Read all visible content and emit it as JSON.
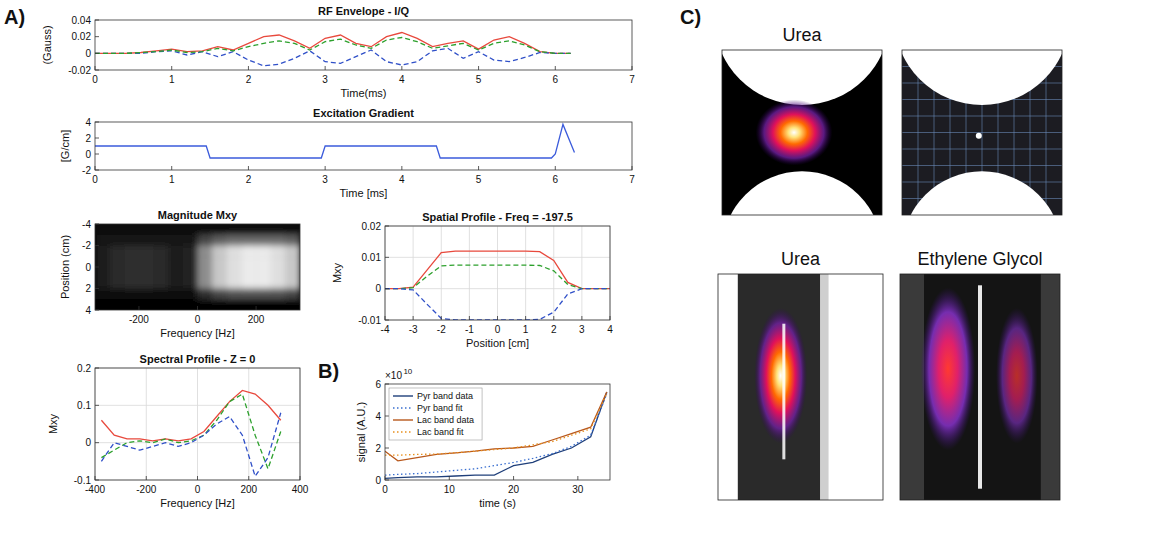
{
  "panel_labels": [
    "A)",
    "B)",
    "C)"
  ],
  "chart_data": [
    {
      "type": "line",
      "title": "RF Envelope - I/Q",
      "x_label": "Time(ms)",
      "y_label": "(Gauss)",
      "xlim": [
        0,
        7
      ],
      "xticks": [
        0,
        1,
        2,
        3,
        4,
        5,
        6,
        7
      ],
      "ylim": [
        -0.02,
        0.04
      ],
      "yticks": [
        -0.02,
        0,
        0.02,
        0.04
      ],
      "grid": false,
      "x": [
        0,
        0.2,
        0.4,
        0.6,
        0.8,
        1,
        1.2,
        1.4,
        1.6,
        1.8,
        2,
        2.2,
        2.4,
        2.6,
        2.8,
        3,
        3.2,
        3.4,
        3.6,
        3.8,
        4,
        4.2,
        4.4,
        4.6,
        4.8,
        5,
        5.2,
        5.4,
        5.6,
        5.8,
        6,
        6.2
      ],
      "series": [
        {
          "color": "#e8493d",
          "line_style": "solid",
          "values": [
            0,
            0,
            0,
            0.001,
            0.003,
            0.005,
            0.002,
            0.003,
            0.008,
            0.004,
            0.012,
            0.02,
            0.022,
            0.015,
            0.006,
            0.018,
            0.022,
            0.012,
            0.008,
            0.02,
            0.025,
            0.018,
            0.008,
            0.012,
            0.015,
            0.005,
            0.016,
            0.02,
            0.012,
            0.002,
            0,
            0
          ]
        },
        {
          "color": "#3050c8",
          "line_style": "dashed",
          "values": [
            0,
            0,
            0,
            0,
            0.002,
            0.003,
            -0.002,
            0.002,
            -0.004,
            0.002,
            -0.008,
            -0.015,
            -0.013,
            -0.006,
            0.003,
            -0.01,
            -0.012,
            -0.004,
            0.004,
            -0.01,
            -0.014,
            -0.01,
            0.003,
            0.006,
            -0.006,
            0.002,
            -0.008,
            -0.01,
            -0.005,
            0.001,
            0,
            0
          ]
        },
        {
          "color": "#2ca02c",
          "line_style": "dashed",
          "values": [
            0,
            0,
            0,
            0.001,
            0.002,
            0.004,
            0.001,
            0.002,
            0.006,
            0.003,
            0.008,
            0.012,
            0.015,
            0.012,
            0.004,
            0.014,
            0.017,
            0.01,
            0.006,
            0.016,
            0.019,
            0.014,
            0.006,
            0.009,
            0.012,
            0.004,
            0.012,
            0.015,
            0.01,
            0.002,
            0,
            0
          ]
        }
      ]
    },
    {
      "type": "line",
      "title": "Excitation Gradient",
      "x_label": "Time [ms]",
      "y_label": "[G/cm]",
      "xlim": [
        0,
        7
      ],
      "xticks": [
        0,
        1,
        2,
        3,
        4,
        5,
        6,
        7
      ],
      "ylim": [
        -2,
        4
      ],
      "yticks": [
        -2,
        0,
        2,
        4
      ],
      "grid": false,
      "x": [
        0,
        1.45,
        1.5,
        2.95,
        3,
        4.45,
        4.5,
        5.95,
        6,
        6.1,
        6.25
      ],
      "series": [
        {
          "color": "#3b5bdb",
          "line_style": "solid",
          "values": [
            1,
            1,
            -0.5,
            -0.5,
            1,
            1,
            -0.5,
            -0.5,
            0,
            3.7,
            0.2
          ]
        }
      ]
    },
    {
      "type": "heatmap",
      "title": "Magnitude Mxy",
      "x_label": "Frequency [Hz]",
      "y_label": "Position (cm)",
      "xlim": [
        -350,
        350
      ],
      "xticks": [
        -200,
        0,
        200
      ],
      "ylim": [
        4,
        -4
      ],
      "yticks": [
        -4,
        -2,
        0,
        2,
        4
      ],
      "x": [
        -325,
        -275,
        -225,
        -175,
        -125,
        -75,
        -25,
        25,
        75,
        125,
        175,
        225,
        275,
        325
      ],
      "y": [
        -3.5,
        -2.5,
        -1.5,
        -0.5,
        0.5,
        1.5,
        2.5,
        3.5
      ],
      "cells": [
        [
          0.03,
          0.03,
          0.03,
          0.03,
          0.03,
          0.03,
          0.03,
          0.03,
          0.03,
          0.03,
          0.03,
          0.03,
          0.03,
          0.03
        ],
        [
          0.08,
          0.08,
          0.08,
          0.08,
          0.08,
          0.08,
          0.08,
          0.3,
          0.4,
          0.45,
          0.45,
          0.45,
          0.45,
          0.4
        ],
        [
          0.12,
          0.18,
          0.2,
          0.2,
          0.18,
          0.12,
          0.15,
          0.6,
          0.85,
          0.95,
          1,
          1,
          0.95,
          0.85
        ],
        [
          0.12,
          0.18,
          0.2,
          0.2,
          0.18,
          0.12,
          0.15,
          0.6,
          0.85,
          0.95,
          1,
          1,
          0.95,
          0.85
        ],
        [
          0.12,
          0.18,
          0.2,
          0.2,
          0.18,
          0.12,
          0.15,
          0.6,
          0.85,
          0.95,
          1,
          1,
          0.95,
          0.85
        ],
        [
          0.12,
          0.18,
          0.2,
          0.2,
          0.18,
          0.12,
          0.15,
          0.6,
          0.85,
          0.95,
          1,
          1,
          0.95,
          0.85
        ],
        [
          0.06,
          0.06,
          0.06,
          0.06,
          0.06,
          0.06,
          0.06,
          0.2,
          0.3,
          0.35,
          0.35,
          0.35,
          0.35,
          0.3
        ],
        [
          0.02,
          0.02,
          0.02,
          0.02,
          0.02,
          0.02,
          0.02,
          0.02,
          0.02,
          0.02,
          0.02,
          0.02,
          0.02,
          0.02
        ]
      ]
    },
    {
      "type": "line",
      "title": "Spatial Profile - Freq = -197.5",
      "x_label": "Position [cm]",
      "y_label": "Mxy",
      "xlim": [
        -4,
        4
      ],
      "xticks": [
        -4,
        -3,
        -2,
        -1,
        0,
        1,
        2,
        3,
        4
      ],
      "ylim": [
        -0.01,
        0.02
      ],
      "yticks": [
        -0.01,
        0,
        0.01,
        0.02
      ],
      "grid": true,
      "x": [
        -4,
        -3.5,
        -3,
        -2.5,
        -2,
        -1.5,
        -1,
        -0.5,
        0,
        0.5,
        1,
        1.5,
        2,
        2.5,
        3,
        3.5,
        4
      ],
      "series": [
        {
          "color": "#e8493d",
          "line_style": "solid",
          "values": [
            0,
            0,
            0.0005,
            0.006,
            0.0115,
            0.012,
            0.012,
            0.012,
            0.012,
            0.012,
            0.012,
            0.0118,
            0.009,
            0.002,
            0,
            0,
            0
          ]
        },
        {
          "color": "#2ca02c",
          "line_style": "dashed",
          "values": [
            0,
            0,
            0.0003,
            0.004,
            0.0073,
            0.0075,
            0.0075,
            0.0075,
            0.0075,
            0.0075,
            0.0075,
            0.0074,
            0.0057,
            0.0013,
            0,
            0,
            0
          ]
        },
        {
          "color": "#3050c8",
          "line_style": "dashed",
          "values": [
            0,
            0,
            -0.0004,
            -0.005,
            -0.0095,
            -0.01,
            -0.01,
            -0.01,
            -0.01,
            -0.01,
            -0.01,
            -0.0098,
            -0.0075,
            -0.0017,
            0,
            0,
            0
          ]
        }
      ]
    },
    {
      "type": "line",
      "title": "Spectral Profile - Z = 0",
      "x_label": "Frequency [Hz]",
      "y_label": "Mxy",
      "xlim": [
        -400,
        400
      ],
      "xticks": [
        -400,
        -200,
        0,
        200,
        400
      ],
      "ylim": [
        -0.1,
        0.2
      ],
      "yticks": [
        -0.1,
        0,
        0.1,
        0.2
      ],
      "grid": true,
      "x": [
        -375,
        -325,
        -275,
        -225,
        -175,
        -125,
        -75,
        -25,
        25,
        75,
        125,
        175,
        225,
        275,
        325
      ],
      "series": [
        {
          "color": "#e8493d",
          "line_style": "solid",
          "values": [
            0.06,
            0.02,
            0.01,
            0.01,
            0.005,
            0.01,
            0.005,
            0.01,
            0.03,
            0.07,
            0.11,
            0.14,
            0.13,
            0.1,
            0.06
          ]
        },
        {
          "color": "#2ca02c",
          "line_style": "dashed",
          "values": [
            -0.04,
            -0.02,
            0,
            0.005,
            0,
            0.01,
            0,
            0.005,
            0.02,
            0.06,
            0.11,
            0.13,
            0.02,
            -0.07,
            0.03
          ]
        },
        {
          "color": "#3050c8",
          "line_style": "dashed",
          "values": [
            -0.05,
            0,
            -0.01,
            -0.02,
            -0.01,
            0,
            -0.01,
            0,
            0.02,
            0.05,
            0.07,
            0.02,
            -0.09,
            -0.04,
            0.08
          ]
        }
      ]
    },
    {
      "type": "line",
      "x_label": "time (s)",
      "y_label": "signal (A.U.)",
      "y_multiplier_base": "×10",
      "y_multiplier_exponent": "10",
      "xlim": [
        0,
        35
      ],
      "xticks": [
        0,
        10,
        20,
        30
      ],
      "ylim": [
        0,
        6
      ],
      "yticks": [
        0,
        2,
        4,
        6
      ],
      "grid": false,
      "legend": "upper-left",
      "x": [
        0,
        2,
        5,
        8,
        11,
        14,
        17,
        20,
        23,
        26,
        29,
        32,
        34.5
      ],
      "series": [
        {
          "name": "Pyr band data",
          "color": "#1f3f7a",
          "line_style": "solid",
          "values": [
            0.1,
            0.15,
            0.2,
            0.2,
            0.25,
            0.3,
            0.3,
            0.9,
            1.1,
            1.6,
            2.0,
            2.7,
            5.5
          ]
        },
        {
          "name": "Pyr band fit",
          "color": "#3a6fd0",
          "line_style": "dotted",
          "values": [
            0.3,
            0.35,
            0.4,
            0.5,
            0.6,
            0.7,
            0.9,
            1.1,
            1.35,
            1.65,
            2.1,
            2.8,
            5.4
          ]
        },
        {
          "name": "Lac band data",
          "color": "#b8581c",
          "line_style": "solid",
          "values": [
            1.8,
            1.2,
            1.4,
            1.6,
            1.7,
            1.8,
            1.95,
            2.0,
            2.1,
            2.5,
            2.9,
            3.3,
            5.5
          ]
        },
        {
          "name": "Lac band fit",
          "color": "#e8901e",
          "line_style": "dotted",
          "values": [
            1.55,
            1.55,
            1.6,
            1.62,
            1.7,
            1.8,
            1.9,
            2.0,
            2.2,
            2.4,
            2.8,
            3.2,
            5.4
          ]
        }
      ]
    }
  ],
  "images": {
    "titles": [
      "Urea",
      "Urea",
      "Ethylene Glycol"
    ]
  }
}
